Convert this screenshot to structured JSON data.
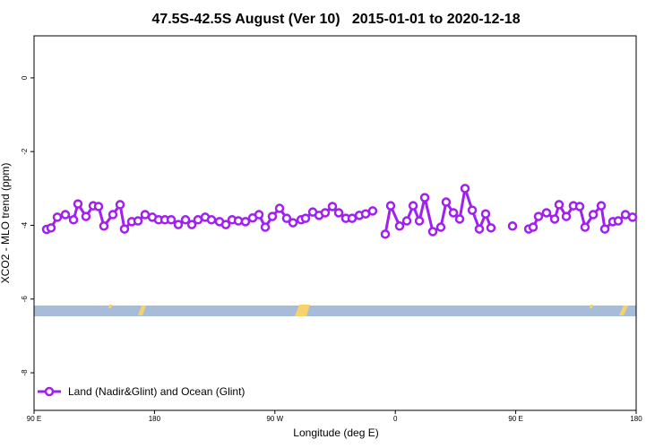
{
  "chart_data": {
    "type": "line",
    "title": "47.5S-42.5S August (Ver 10)   2015-01-01 to 2020-12-18",
    "xlabel": "Longitude (deg E)",
    "ylabel": "XCO2 - MLO trend (ppm)",
    "xlim": [
      90,
      540
    ],
    "ylim": [
      -9.02,
      1.14
    ],
    "xticks": [
      {
        "value": 90,
        "label": "90 E"
      },
      {
        "value": 180,
        "label": "180"
      },
      {
        "value": 270,
        "label": "90 W"
      },
      {
        "value": 360,
        "label": "0"
      },
      {
        "value": 450,
        "label": "90 E"
      },
      {
        "value": 540,
        "label": "180"
      }
    ],
    "yticks": [
      0,
      -2,
      -4,
      -6,
      -8
    ],
    "legend": "bottom-left",
    "x": [
      99.4,
      102.7,
      107.4,
      113.4,
      119.5,
      122.8,
      128.8,
      134.2,
      138.2,
      142.2,
      148.9,
      154.3,
      157.6,
      163.0,
      167.7,
      173.0,
      178.4,
      183.1,
      187.8,
      192.5,
      197.8,
      203.2,
      207.9,
      212.5,
      217.9,
      222.6,
      228.6,
      233.3,
      238.0,
      242.7,
      248.0,
      253.4,
      258.1,
      262.8,
      268.1,
      273.5,
      278.8,
      283.5,
      289.6,
      292.9,
      298.3,
      303.0,
      307.6,
      313.0,
      317.7,
      323.0,
      327.7,
      333.1,
      337.8,
      343.1,
      348.0,
      352.5,
      356.5,
      363.2,
      368.6,
      373.3,
      378.0,
      382.0,
      388.0,
      394.0,
      398.0,
      403.4,
      408.1,
      412.1,
      417.5,
      422.8,
      427.5,
      431.5,
      440.0,
      447.6,
      455.0,
      459.7,
      463.0,
      467.0,
      473.0,
      479.1,
      482.4,
      487.8,
      493.1,
      497.8,
      501.8,
      507.9,
      513.9,
      516.6,
      522.6,
      526.6,
      532.0,
      537.3
    ],
    "series": [
      {
        "name": "Land (Nadir&Glint) and Ocean (Glint)",
        "color": "#a020f0",
        "values": [
          -4.11,
          -4.07,
          -3.78,
          -3.71,
          -3.85,
          -3.42,
          -3.76,
          -3.47,
          -3.49,
          -4.02,
          -3.71,
          -3.44,
          -4.1,
          -3.9,
          -3.88,
          -3.71,
          -3.78,
          -3.85,
          -3.85,
          -3.85,
          -3.98,
          -3.85,
          -3.98,
          -3.85,
          -3.78,
          -3.85,
          -3.9,
          -3.98,
          -3.85,
          -3.88,
          -3.9,
          -3.8,
          -3.71,
          -4.05,
          -3.76,
          -3.54,
          -3.81,
          -3.93,
          -3.85,
          -3.81,
          -3.64,
          -3.73,
          -3.66,
          -3.49,
          -3.66,
          -3.81,
          -3.81,
          -3.73,
          -3.69,
          -3.61,
          null,
          -4.24,
          -3.47,
          -4.02,
          -3.88,
          -3.47,
          -3.88,
          -3.25,
          -4.17,
          -4.05,
          -3.37,
          -3.66,
          -3.83,
          -3.0,
          -3.59,
          -4.1,
          -3.69,
          -4.07,
          null,
          -4.02,
          null,
          -4.1,
          -4.05,
          -3.76,
          -3.66,
          -3.83,
          -3.44,
          -3.76,
          -3.47,
          -3.49,
          -4.05,
          -3.71,
          -3.47,
          -4.1,
          -3.9,
          -3.88,
          -3.71,
          -3.78
        ]
      }
    ]
  }
}
